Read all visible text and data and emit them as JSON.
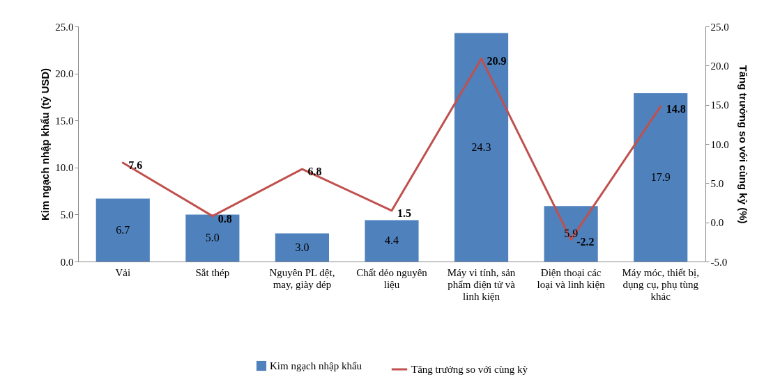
{
  "chart_data": {
    "type": "bar",
    "categories": [
      "Vải",
      "Sắt thép",
      "Nguyên PL dệt, may, giày dép",
      "Chất dẻo nguyên liệu",
      "Máy vi tính, sản phẩm điện tử và linh kiện",
      "Điện thoại các loại và linh kiện",
      "Máy móc, thiết bị, dụng cụ, phụ tùng khác"
    ],
    "ylabel": "Kim ngạch nhập khẩu (tỷ USD)",
    "y2label": "Tăng trưởng so với cùng kỳ (%)",
    "ylim": [
      0,
      25
    ],
    "yticks": [
      {
        "value": 0,
        "label": "0.0"
      },
      {
        "value": 5,
        "label": "5.0"
      },
      {
        "value": 10,
        "label": "10.0"
      },
      {
        "value": 15,
        "label": "15.0"
      },
      {
        "value": 20,
        "label": "20.0"
      },
      {
        "value": 25,
        "label": "25.0"
      }
    ],
    "y2lim": [
      -5,
      25
    ],
    "y2ticks": [
      {
        "value": -5,
        "label": "-5.0"
      },
      {
        "value": 0,
        "label": "0.0"
      },
      {
        "value": 5,
        "label": "5.0"
      },
      {
        "value": 10,
        "label": "10.0"
      },
      {
        "value": 15,
        "label": "15.0"
      },
      {
        "value": 20,
        "label": "20.0"
      },
      {
        "value": 25,
        "label": "25.0"
      }
    ],
    "series": [
      {
        "name": "Kim ngạch nhập khẩu",
        "color": "#4f81bd",
        "values": [
          6.7,
          5.0,
          3.0,
          4.4,
          24.3,
          5.9,
          17.9
        ],
        "value_labels": [
          "6.7",
          "5.0",
          "3.0",
          "4.4",
          "24.3",
          "5.9",
          "17.9"
        ]
      },
      {
        "name": "Tăng trưởng so với cùng kỳ",
        "type": "line",
        "axis": "y2",
        "color": "#c0504d",
        "values": [
          7.6,
          0.8,
          6.8,
          1.5,
          20.9,
          -2.2,
          14.8
        ],
        "value_labels": [
          "7.6",
          "0.8",
          "6.8",
          "1.5",
          "20.9",
          "-2.2",
          "14.8"
        ]
      }
    ],
    "legend": "bottom",
    "grid": false
  }
}
